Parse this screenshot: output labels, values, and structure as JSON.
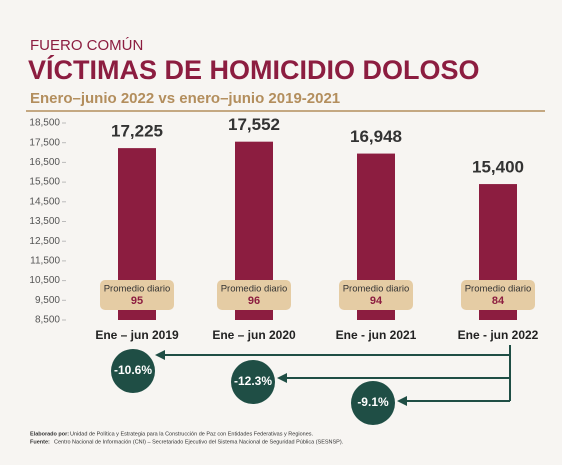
{
  "chart_data": {
    "type": "bar",
    "kicker": "FUERO COMÚN",
    "title": "VÍCTIMAS  DE HOMICIDIO DOLOSO",
    "subtitle": "Enero–junio 2022 vs enero–junio 2019-2021",
    "categories": [
      "Ene – jun 2019",
      "Ene – jun 2020",
      "Ene - jun 2021",
      "Ene - jun 2022"
    ],
    "values": [
      17225,
      17552,
      16948,
      15400
    ],
    "value_labels": [
      "17,225",
      "17,552",
      "16,948",
      "15,400"
    ],
    "color": "#8c1d40",
    "ylim": [
      8500,
      18500
    ],
    "yticks": [
      {
        "value": 8500,
        "label": "8,500"
      },
      {
        "value": 9500,
        "label": "9,500"
      },
      {
        "value": 10500,
        "label": "10,500"
      },
      {
        "value": 11500,
        "label": "11,500"
      },
      {
        "value": 12500,
        "label": "12,500"
      },
      {
        "value": 13500,
        "label": "13,500"
      },
      {
        "value": 14500,
        "label": "14,500"
      },
      {
        "value": 15500,
        "label": "15,500"
      },
      {
        "value": 16500,
        "label": "16,500"
      },
      {
        "value": 17500,
        "label": "17,500"
      },
      {
        "value": 18500,
        "label": "18,500"
      }
    ],
    "daily_average": {
      "label": "Promedio diario",
      "values": [
        95,
        96,
        94,
        84
      ]
    },
    "changes": {
      "values": [
        -10.6,
        -12.3,
        -9.1
      ],
      "value_labels": [
        "-10.6%",
        "-12.3%",
        "-9.1%"
      ]
    }
  },
  "footer": {
    "made_by_label": "Elaborado por:",
    "made_by": "Unidad de Política y Estrategia para la Construcción de Paz con Entidades Federativas y Regiones.",
    "source_label": "Fuente:",
    "source": "Centro Nacional de Información (CNI) – Secretariado Ejecutivo del Sistema Nacional de Seguridad Pública (SESNSP)."
  }
}
